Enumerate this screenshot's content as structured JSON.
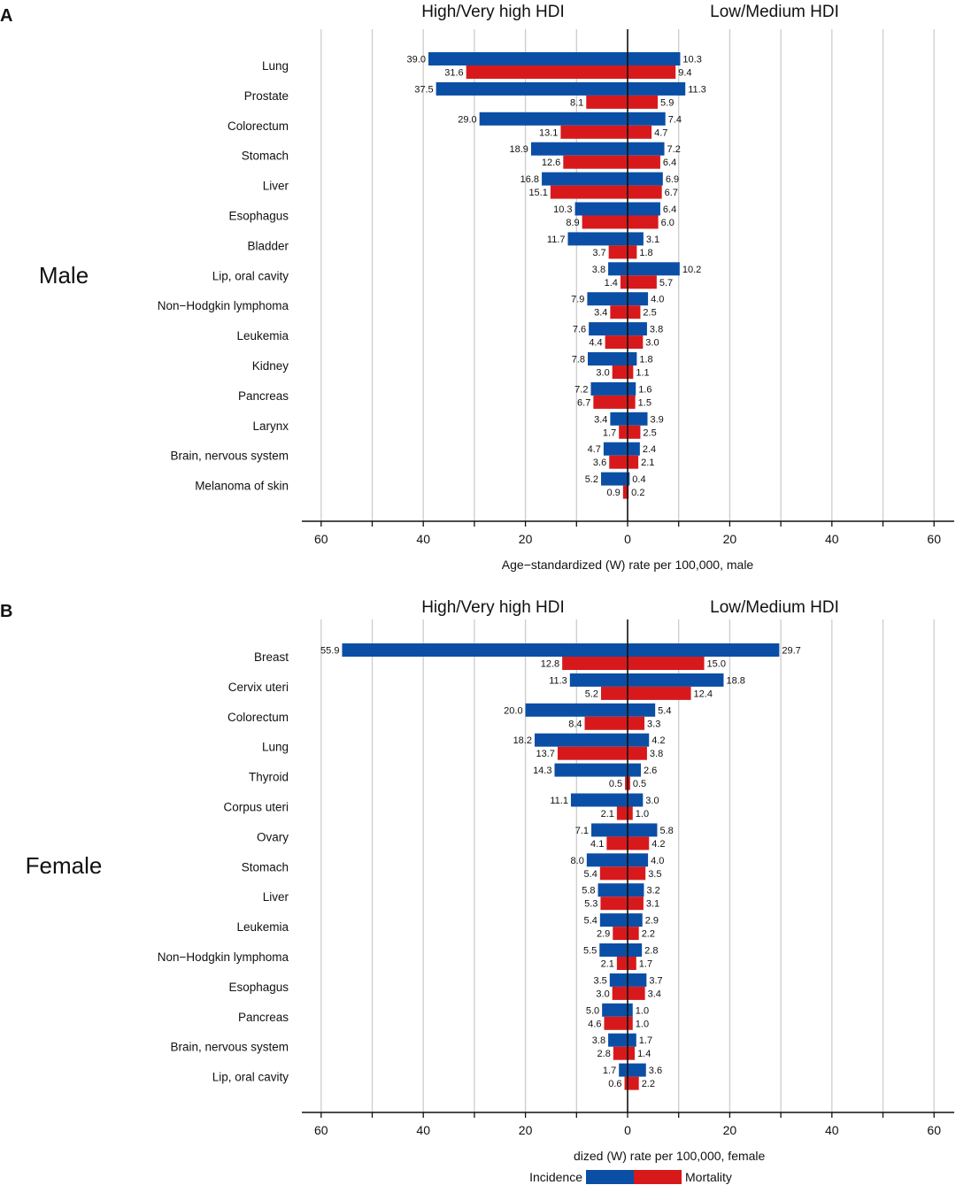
{
  "colors": {
    "incidence": "#0a4fa5",
    "mortality": "#d8191c",
    "grid": "#cccccc",
    "axis": "#111111"
  },
  "legend": {
    "incidence": "Incidence",
    "mortality": "Mortality"
  },
  "chart_data": [
    {
      "type": "bar",
      "panel": "A",
      "group_label": "Male",
      "left_header": "High/Very high HDI",
      "right_header": "Low/Medium HDI",
      "xlabel": "Age−standardized (W) rate per 100,000, male",
      "xlim": [
        -60,
        60
      ],
      "ticks": [
        60,
        40,
        20,
        0,
        20,
        40,
        60
      ],
      "categories": [
        "Lung",
        "Prostate",
        "Colorectum",
        "Stomach",
        "Liver",
        "Esophagus",
        "Bladder",
        "Lip, oral cavity",
        "Non−Hodgkin lymphoma",
        "Leukemia",
        "Kidney",
        "Pancreas",
        "Larynx",
        "Brain, nervous system",
        "Melanoma of skin"
      ],
      "series": [
        {
          "name": "Incidence",
          "side": "High/Very high HDI",
          "values": [
            39.0,
            37.5,
            29.0,
            18.9,
            16.8,
            10.3,
            11.7,
            3.8,
            7.9,
            7.6,
            7.8,
            7.2,
            3.4,
            4.7,
            5.2
          ]
        },
        {
          "name": "Mortality",
          "side": "High/Very high HDI",
          "values": [
            31.6,
            8.1,
            13.1,
            12.6,
            15.1,
            8.9,
            3.7,
            1.4,
            3.4,
            4.4,
            3.0,
            6.7,
            1.7,
            3.6,
            0.9
          ]
        },
        {
          "name": "Incidence",
          "side": "Low/Medium HDI",
          "values": [
            10.3,
            11.3,
            7.4,
            7.2,
            6.9,
            6.4,
            3.1,
            10.2,
            4.0,
            3.8,
            1.8,
            1.6,
            3.9,
            2.4,
            0.4
          ]
        },
        {
          "name": "Mortality",
          "side": "Low/Medium HDI",
          "values": [
            9.4,
            5.9,
            4.7,
            6.4,
            6.7,
            6.0,
            1.8,
            5.7,
            2.5,
            3.0,
            1.1,
            1.5,
            2.5,
            2.1,
            0.2
          ]
        }
      ]
    },
    {
      "type": "bar",
      "panel": "B",
      "group_label": "Female",
      "left_header": "High/Very high HDI",
      "right_header": "Low/Medium HDI",
      "xlabel": "dized (W) rate per 100,000, female",
      "xlim": [
        -60,
        60
      ],
      "ticks": [
        60,
        40,
        20,
        0,
        20,
        40,
        60
      ],
      "categories": [
        "Breast",
        "Cervix uteri",
        "Colorectum",
        "Lung",
        "Thyroid",
        "Corpus uteri",
        "Ovary",
        "Stomach",
        "Liver",
        "Leukemia",
        "Non−Hodgkin lymphoma",
        "Esophagus",
        "Pancreas",
        "Brain, nervous system",
        "Lip, oral cavity"
      ],
      "series": [
        {
          "name": "Incidence",
          "side": "High/Very high HDI",
          "values": [
            55.9,
            11.3,
            20.0,
            18.2,
            14.3,
            11.1,
            7.1,
            8.0,
            5.8,
            5.4,
            5.5,
            3.5,
            5.0,
            3.8,
            1.7
          ]
        },
        {
          "name": "Mortality",
          "side": "High/Very high HDI",
          "values": [
            12.8,
            5.2,
            8.4,
            13.7,
            0.5,
            2.1,
            4.1,
            5.4,
            5.3,
            2.9,
            2.1,
            3.0,
            4.6,
            2.8,
            0.6
          ]
        },
        {
          "name": "Incidence",
          "side": "Low/Medium HDI",
          "values": [
            29.7,
            18.8,
            5.4,
            4.2,
            2.6,
            3.0,
            5.8,
            4.0,
            3.2,
            2.9,
            2.8,
            3.7,
            1.0,
            1.7,
            3.6
          ]
        },
        {
          "name": "Mortality",
          "side": "Low/Medium HDI",
          "values": [
            15.0,
            12.4,
            3.3,
            3.8,
            0.5,
            1.0,
            4.2,
            3.5,
            3.1,
            2.2,
            1.7,
            3.4,
            1.0,
            1.4,
            2.2
          ]
        }
      ]
    }
  ]
}
